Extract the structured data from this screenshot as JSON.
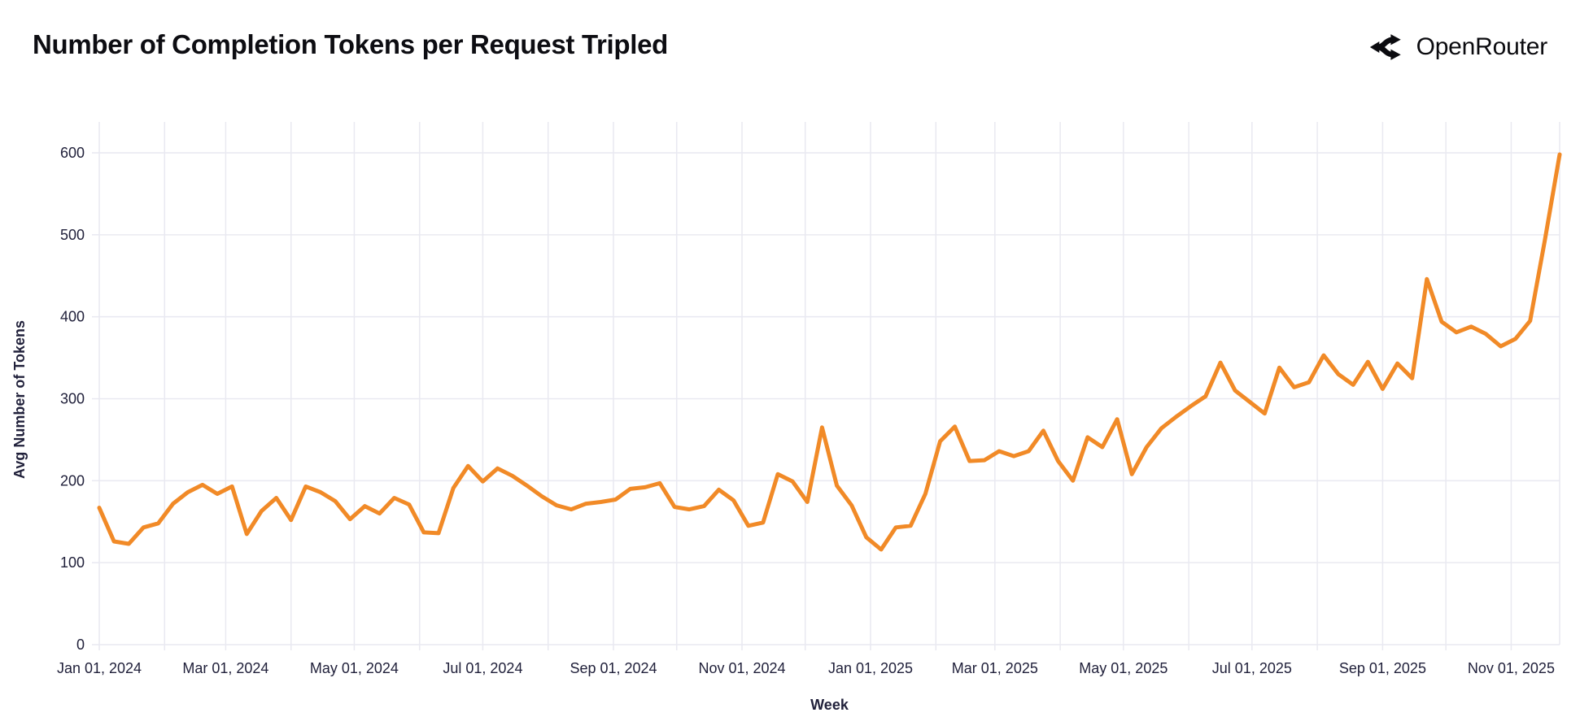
{
  "header": {
    "title": "Number of Completion Tokens per Request Tripled",
    "brand": "OpenRouter"
  },
  "colors": {
    "line": "#F18A27",
    "grid": "#E9E9F1",
    "axis_text": "#21213B",
    "title_text": "#0D0D12",
    "background": "#FFFFFF"
  },
  "chart_data": {
    "type": "line",
    "title": "Number of Completion Tokens per Request Tripled",
    "xlabel": "Week",
    "ylabel": "Avg Number of Tokens",
    "x_start_date": "2024-01-01",
    "x_interval_days": 7,
    "x_tick_labels": [
      "Jan 01, 2024",
      "Mar 01, 2024",
      "May 01, 2024",
      "Jul 01, 2024",
      "Sep 01, 2024",
      "Nov 01, 2024",
      "Jan 01, 2025",
      "Mar 01, 2025",
      "May 01, 2025",
      "Jul 01, 2025",
      "Sep 01, 2025",
      "Nov 01, 2025"
    ],
    "y_ticks": [
      0,
      100,
      200,
      300,
      400,
      500,
      600
    ],
    "ylim": [
      0,
      638
    ],
    "grid": true,
    "legend": "none",
    "series": [
      {
        "name": "Avg Number of Tokens",
        "color": "#F18A27",
        "values": [
          167,
          126,
          123,
          143,
          148,
          172,
          186,
          195,
          184,
          193,
          135,
          163,
          179,
          152,
          193,
          186,
          175,
          153,
          169,
          160,
          179,
          171,
          137,
          136,
          191,
          218,
          199,
          215,
          206,
          194,
          181,
          170,
          165,
          172,
          174,
          177,
          190,
          192,
          197,
          168,
          165,
          169,
          189,
          176,
          145,
          149,
          208,
          199,
          174,
          265,
          194,
          170,
          131,
          116,
          143,
          145,
          184,
          248,
          266,
          224,
          225,
          236,
          230,
          236,
          261,
          224,
          200,
          253,
          241,
          275,
          208,
          241,
          264,
          278,
          291,
          303,
          344,
          310,
          296,
          282,
          338,
          314,
          320,
          353,
          330,
          317,
          345,
          312,
          343,
          325,
          446,
          394,
          381,
          388,
          379,
          364,
          373,
          395,
          494,
          598
        ]
      }
    ]
  }
}
